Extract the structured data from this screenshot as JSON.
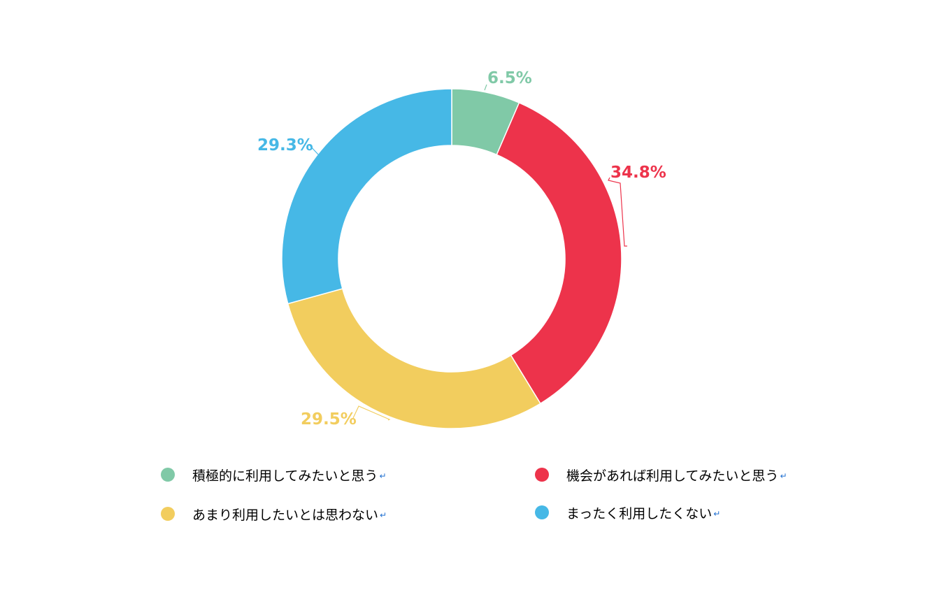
{
  "chart_data": {
    "type": "pie",
    "donut": true,
    "start_angle_deg": 0,
    "direction": "clockwise",
    "slices": [
      {
        "label": "積極的に利用してみたいと思う",
        "value": 6.5,
        "value_label": "6.5%",
        "color": "#80c9a7"
      },
      {
        "label": "機会があれば利用してみたいと思う",
        "value": 34.8,
        "value_label": "34.8%",
        "color": "#ed334b"
      },
      {
        "label": "あまり利用したいとは思わない",
        "value": 29.5,
        "value_label": "29.5%",
        "color": "#f2cd5e"
      },
      {
        "label": "まったく利用したくない",
        "value": 29.3,
        "value_label": "29.3%",
        "color": "#46b8e6"
      }
    ],
    "legend_order": [
      0,
      1,
      2,
      3
    ],
    "legend_position": "bottom",
    "return_mark": "↵"
  }
}
